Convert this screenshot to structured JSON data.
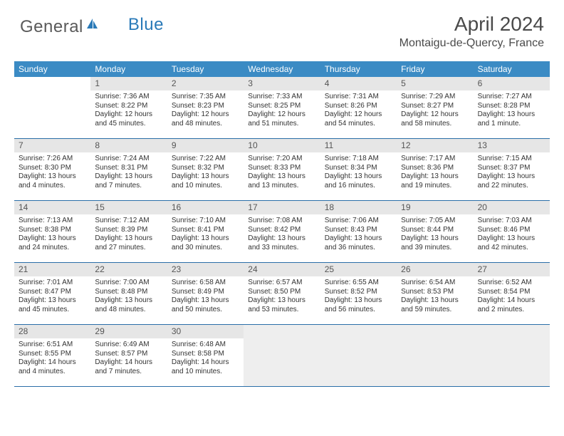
{
  "brand": {
    "part1": "General",
    "part2": "Blue"
  },
  "title": "April 2024",
  "location": "Montaigu-de-Quercy, France",
  "colors": {
    "header_bg": "#3b8bc4",
    "header_text": "#ffffff",
    "week_border": "#2a6ea8",
    "daynum_bg": "#e6e6e6",
    "logo_blue": "#2a7ab8",
    "text": "#333333"
  },
  "day_names": [
    "Sunday",
    "Monday",
    "Tuesday",
    "Wednesday",
    "Thursday",
    "Friday",
    "Saturday"
  ],
  "leading_blanks": 1,
  "trailing_blanks": 4,
  "days": [
    {
      "n": 1,
      "sunrise": "7:36 AM",
      "sunset": "8:22 PM",
      "daylight": "12 hours and 45 minutes."
    },
    {
      "n": 2,
      "sunrise": "7:35 AM",
      "sunset": "8:23 PM",
      "daylight": "12 hours and 48 minutes."
    },
    {
      "n": 3,
      "sunrise": "7:33 AM",
      "sunset": "8:25 PM",
      "daylight": "12 hours and 51 minutes."
    },
    {
      "n": 4,
      "sunrise": "7:31 AM",
      "sunset": "8:26 PM",
      "daylight": "12 hours and 54 minutes."
    },
    {
      "n": 5,
      "sunrise": "7:29 AM",
      "sunset": "8:27 PM",
      "daylight": "12 hours and 58 minutes."
    },
    {
      "n": 6,
      "sunrise": "7:27 AM",
      "sunset": "8:28 PM",
      "daylight": "13 hours and 1 minute."
    },
    {
      "n": 7,
      "sunrise": "7:26 AM",
      "sunset": "8:30 PM",
      "daylight": "13 hours and 4 minutes."
    },
    {
      "n": 8,
      "sunrise": "7:24 AM",
      "sunset": "8:31 PM",
      "daylight": "13 hours and 7 minutes."
    },
    {
      "n": 9,
      "sunrise": "7:22 AM",
      "sunset": "8:32 PM",
      "daylight": "13 hours and 10 minutes."
    },
    {
      "n": 10,
      "sunrise": "7:20 AM",
      "sunset": "8:33 PM",
      "daylight": "13 hours and 13 minutes."
    },
    {
      "n": 11,
      "sunrise": "7:18 AM",
      "sunset": "8:34 PM",
      "daylight": "13 hours and 16 minutes."
    },
    {
      "n": 12,
      "sunrise": "7:17 AM",
      "sunset": "8:36 PM",
      "daylight": "13 hours and 19 minutes."
    },
    {
      "n": 13,
      "sunrise": "7:15 AM",
      "sunset": "8:37 PM",
      "daylight": "13 hours and 22 minutes."
    },
    {
      "n": 14,
      "sunrise": "7:13 AM",
      "sunset": "8:38 PM",
      "daylight": "13 hours and 24 minutes."
    },
    {
      "n": 15,
      "sunrise": "7:12 AM",
      "sunset": "8:39 PM",
      "daylight": "13 hours and 27 minutes."
    },
    {
      "n": 16,
      "sunrise": "7:10 AM",
      "sunset": "8:41 PM",
      "daylight": "13 hours and 30 minutes."
    },
    {
      "n": 17,
      "sunrise": "7:08 AM",
      "sunset": "8:42 PM",
      "daylight": "13 hours and 33 minutes."
    },
    {
      "n": 18,
      "sunrise": "7:06 AM",
      "sunset": "8:43 PM",
      "daylight": "13 hours and 36 minutes."
    },
    {
      "n": 19,
      "sunrise": "7:05 AM",
      "sunset": "8:44 PM",
      "daylight": "13 hours and 39 minutes."
    },
    {
      "n": 20,
      "sunrise": "7:03 AM",
      "sunset": "8:46 PM",
      "daylight": "13 hours and 42 minutes."
    },
    {
      "n": 21,
      "sunrise": "7:01 AM",
      "sunset": "8:47 PM",
      "daylight": "13 hours and 45 minutes."
    },
    {
      "n": 22,
      "sunrise": "7:00 AM",
      "sunset": "8:48 PM",
      "daylight": "13 hours and 48 minutes."
    },
    {
      "n": 23,
      "sunrise": "6:58 AM",
      "sunset": "8:49 PM",
      "daylight": "13 hours and 50 minutes."
    },
    {
      "n": 24,
      "sunrise": "6:57 AM",
      "sunset": "8:50 PM",
      "daylight": "13 hours and 53 minutes."
    },
    {
      "n": 25,
      "sunrise": "6:55 AM",
      "sunset": "8:52 PM",
      "daylight": "13 hours and 56 minutes."
    },
    {
      "n": 26,
      "sunrise": "6:54 AM",
      "sunset": "8:53 PM",
      "daylight": "13 hours and 59 minutes."
    },
    {
      "n": 27,
      "sunrise": "6:52 AM",
      "sunset": "8:54 PM",
      "daylight": "14 hours and 2 minutes."
    },
    {
      "n": 28,
      "sunrise": "6:51 AM",
      "sunset": "8:55 PM",
      "daylight": "14 hours and 4 minutes."
    },
    {
      "n": 29,
      "sunrise": "6:49 AM",
      "sunset": "8:57 PM",
      "daylight": "14 hours and 7 minutes."
    },
    {
      "n": 30,
      "sunrise": "6:48 AM",
      "sunset": "8:58 PM",
      "daylight": "14 hours and 10 minutes."
    }
  ],
  "labels": {
    "sunrise": "Sunrise:",
    "sunset": "Sunset:",
    "daylight": "Daylight:"
  }
}
